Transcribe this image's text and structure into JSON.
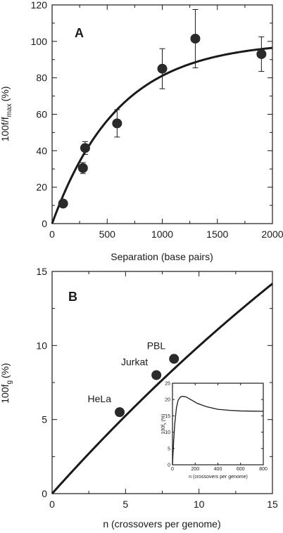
{
  "chart_data": [
    {
      "type": "scatter",
      "panel_label": "A",
      "xlabel": "Separation (base pairs)",
      "ylabel": "100f/f",
      "ylabel_sub": "max",
      "ylabel_unit": "(%)",
      "xlim": [
        0,
        2000
      ],
      "ylim": [
        0,
        120
      ],
      "xticks": [
        "0",
        "500",
        "1000",
        "1500",
        "2000"
      ],
      "yticks": [
        "0",
        "20",
        "40",
        "60",
        "80",
        "100",
        "120"
      ],
      "points": [
        {
          "x": 100,
          "y": 11,
          "err": 0
        },
        {
          "x": 280,
          "y": 30.5,
          "err": 3
        },
        {
          "x": 300,
          "y": 41.5,
          "err": 3.5
        },
        {
          "x": 590,
          "y": 55,
          "err": 7.5
        },
        {
          "x": 1000,
          "y": 85,
          "err": 11
        },
        {
          "x": 1300,
          "y": 101.5,
          "err": 16
        },
        {
          "x": 1900,
          "y": 93,
          "err": 9.5
        }
      ],
      "fit_curve": {
        "form": "100*(1-exp(-x/L))",
        "L": 600
      }
    },
    {
      "type": "line",
      "panel_label": "B",
      "xlabel": "n (crossovers per genome)",
      "ylabel": "100f",
      "ylabel_sub": "g",
      "ylabel_unit": "(%)",
      "xlim": [
        0,
        15
      ],
      "ylim": [
        0,
        15
      ],
      "xticks": [
        "0",
        "5",
        "10",
        "15"
      ],
      "yticks": [
        "0",
        "5",
        "10",
        "15"
      ],
      "points": [
        {
          "label": "HeLa",
          "x": 4.6,
          "y": 5.5
        },
        {
          "label": "Jurkat",
          "x": 7.1,
          "y": 8.0
        },
        {
          "label": "PBL",
          "x": 8.3,
          "y": 9.1
        }
      ],
      "curve": {
        "form": "50*(1-exp(-n/A))",
        "A": 45
      },
      "inset": {
        "xlabel": "n (crossovers per genome)",
        "ylabel": "100f",
        "ylabel_sub": "s",
        "ylabel_unit": "(%)",
        "xlim": [
          0,
          800
        ],
        "ylim": [
          0,
          25
        ],
        "xticks": [
          "0",
          "200",
          "400",
          "600",
          "800"
        ],
        "yticks": [
          "0",
          "5",
          "10",
          "15",
          "20",
          "25"
        ],
        "curve_points": [
          [
            0,
            0
          ],
          [
            10,
            7
          ],
          [
            20,
            12.5
          ],
          [
            35,
            17.5
          ],
          [
            50,
            19.8
          ],
          [
            70,
            20.8
          ],
          [
            90,
            21.0
          ],
          [
            120,
            20.8
          ],
          [
            160,
            20.0
          ],
          [
            220,
            18.8
          ],
          [
            300,
            17.8
          ],
          [
            400,
            17.0
          ],
          [
            500,
            16.7
          ],
          [
            600,
            16.5
          ],
          [
            700,
            16.45
          ],
          [
            800,
            16.4
          ]
        ]
      }
    }
  ]
}
